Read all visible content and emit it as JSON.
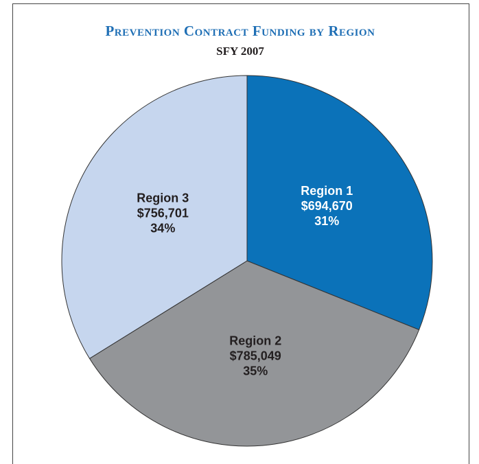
{
  "chart_data": {
    "type": "pie",
    "title": "Prevention Contract Funding by Region",
    "subtitle": "SFY 2007",
    "categories": [
      "Region 1",
      "Region 2",
      "Region 3"
    ],
    "values": [
      694670,
      785049,
      756701
    ],
    "value_labels": [
      "$694,670",
      "$785,049",
      "$756,701"
    ],
    "percents": [
      31,
      35,
      34
    ],
    "percent_labels": [
      "31%",
      "35%",
      "34%"
    ],
    "colors": [
      "#0b72b9",
      "#939598",
      "#c6d6ee"
    ],
    "label_colors": [
      "#ffffff",
      "#231f20",
      "#231f20"
    ]
  }
}
